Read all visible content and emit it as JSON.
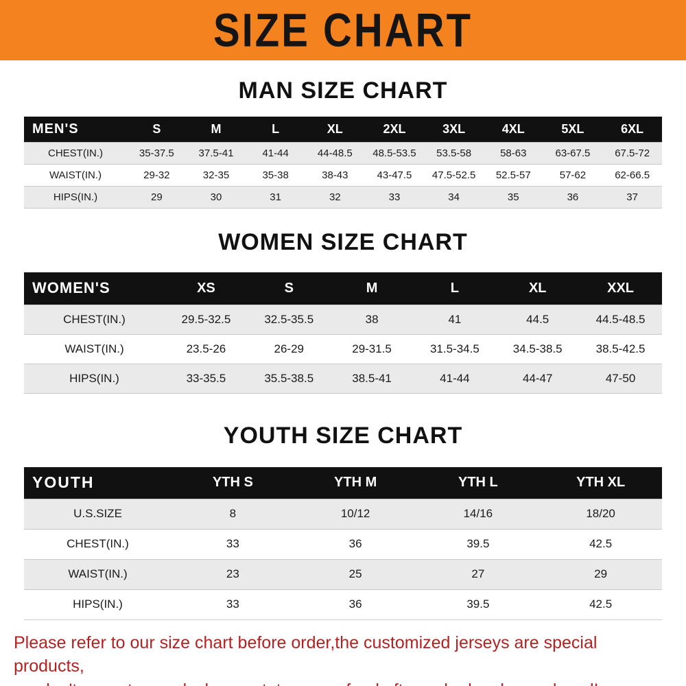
{
  "banner": {
    "title": "SIZE CHART"
  },
  "colors": {
    "banner_bg": "#f4831f",
    "table_header_bg": "#111111",
    "row_stripe": "#eaeaea",
    "notice_text": "#b22222"
  },
  "sections": [
    {
      "heading": "MAN SIZE CHART",
      "table": {
        "corner_label": "MEN'S",
        "columns": [
          "S",
          "M",
          "L",
          "XL",
          "2XL",
          "3XL",
          "4XL",
          "5XL",
          "6XL"
        ],
        "rows": [
          {
            "label": "CHEST(IN.)",
            "values": [
              "35-37.5",
              "37.5-41",
              "41-44",
              "44-48.5",
              "48.5-53.5",
              "53.5-58",
              "58-63",
              "63-67.5",
              "67.5-72"
            ]
          },
          {
            "label": "WAIST(IN.)",
            "values": [
              "29-32",
              "32-35",
              "35-38",
              "38-43",
              "43-47.5",
              "47.5-52.5",
              "52.5-57",
              "57-62",
              "62-66.5"
            ]
          },
          {
            "label": "HIPS(IN.)",
            "values": [
              "29",
              "30",
              "31",
              "32",
              "33",
              "34",
              "35",
              "36",
              "37"
            ]
          }
        ]
      }
    },
    {
      "heading": "WOMEN SIZE CHART",
      "table": {
        "corner_label": "WOMEN'S",
        "columns": [
          "XS",
          "S",
          "M",
          "L",
          "XL",
          "XXL"
        ],
        "rows": [
          {
            "label": "CHEST(IN.)",
            "values": [
              "29.5-32.5",
              "32.5-35.5",
              "38",
              "41",
              "44.5",
              "44.5-48.5"
            ]
          },
          {
            "label": "WAIST(IN.)",
            "values": [
              "23.5-26",
              "26-29",
              "29-31.5",
              "31.5-34.5",
              "34.5-38.5",
              "38.5-42.5"
            ]
          },
          {
            "label": "HIPS(IN.)",
            "values": [
              "33-35.5",
              "35.5-38.5",
              "38.5-41",
              "41-44",
              "44-47",
              "47-50"
            ]
          }
        ]
      }
    },
    {
      "heading": "YOUTH SIZE CHART",
      "table": {
        "corner_label": "YOUTH",
        "columns": [
          "YTH S",
          "YTH M",
          "YTH L",
          "YTH XL"
        ],
        "rows": [
          {
            "label": "U.S.SIZE",
            "values": [
              "8",
              "10/12",
              "14/16",
              "18/20"
            ]
          },
          {
            "label": "CHEST(IN.)",
            "values": [
              "33",
              "36",
              "39.5",
              "42.5"
            ]
          },
          {
            "label": "WAIST(IN.)",
            "values": [
              "23",
              "25",
              "27",
              "29"
            ]
          },
          {
            "label": "HIPS(IN.)",
            "values": [
              "33",
              "36",
              "39.5",
              "42.5"
            ]
          }
        ]
      }
    }
  ],
  "footer": {
    "lines": [
      "Please refer to our size chart before order,the customized jerseys are special products,",
      "we don't accept cancel, change, teturn or refund after order has been placed!"
    ]
  }
}
